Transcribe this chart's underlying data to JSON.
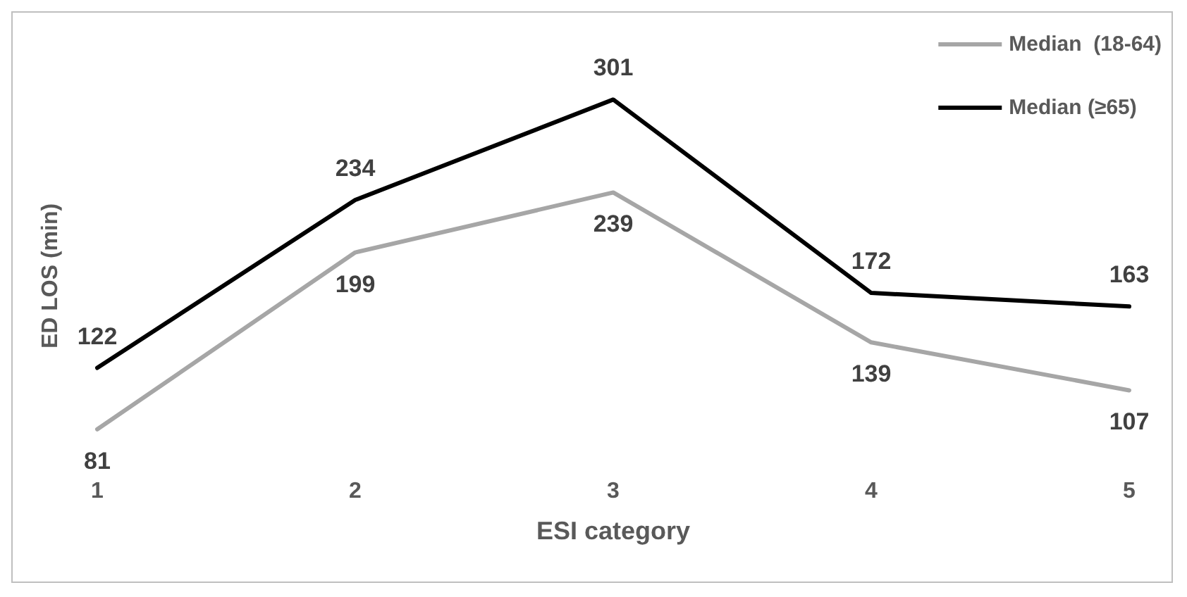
{
  "chart_data": {
    "type": "line",
    "xlabel": "ESI category",
    "ylabel": "ED LOS (min)",
    "categories": [
      "1",
      "2",
      "3",
      "4",
      "5"
    ],
    "series": [
      {
        "name": "Median  (18-64)",
        "color": "#a6a6a6",
        "values": [
          81,
          199,
          239,
          139,
          107
        ]
      },
      {
        "name": "Median (≥65)",
        "color": "#000000",
        "values": [
          122,
          234,
          301,
          172,
          163
        ]
      }
    ],
    "data_labels": true,
    "tick_labels": "x",
    "legend": "top right",
    "grid": false,
    "marker": "none",
    "line_style": "solid"
  }
}
